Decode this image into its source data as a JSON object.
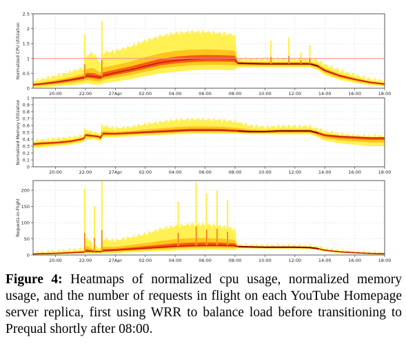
{
  "caption": {
    "label": "Figure 4:",
    "text": "Heatmaps of normalized cpu usage, normalized memory usage, and the number of requests in flight on each YouTube Homepage server replica, first using WRR to balance load before transitioning to Prequal shortly after 08:00."
  },
  "colors": {
    "band_outer": "#fff04a",
    "band_mid": "#ffc21a",
    "band_inner": "#f5500f",
    "core": "#c81a0a",
    "core_dark": "#8a0d08",
    "reference_line": "#ff8a8a",
    "grid": "#c8c8c8"
  },
  "chart_data": [
    {
      "type": "heatmap",
      "ylabel": "Normalized CPU Utilization",
      "xlabel": "",
      "x_ticks": [
        "20:00",
        "22:00",
        "27Apr",
        "02:00",
        "04:00",
        "06:00",
        "08:00",
        "10:00",
        "12:00",
        "14:00",
        "16:00",
        "18:00"
      ],
      "y_ticks": [
        "0",
        "0.5",
        "1",
        "1.5",
        "2",
        "2.5"
      ],
      "ylim": [
        0,
        2.5
      ],
      "xlim_hours": [
        18.5,
        42.0
      ],
      "reference_line_y": 1,
      "grid": true,
      "series": [
        {
          "name": "",
          "x": [
            18.5,
            19,
            20,
            21,
            21.9,
            22.05,
            22.5,
            23.0,
            23.15,
            24,
            25,
            26,
            27,
            28,
            29,
            30,
            31,
            32,
            32.15,
            33,
            34,
            35,
            36,
            37,
            37.5,
            38,
            39,
            40,
            41,
            42
          ],
          "median": [
            0.12,
            0.14,
            0.2,
            0.28,
            0.36,
            0.42,
            0.4,
            0.36,
            0.42,
            0.52,
            0.62,
            0.74,
            0.86,
            0.93,
            0.97,
            0.99,
            0.99,
            0.98,
            0.84,
            0.83,
            0.82,
            0.82,
            0.82,
            0.82,
            0.75,
            0.6,
            0.42,
            0.3,
            0.2,
            0.14
          ],
          "low": [
            0.02,
            0.03,
            0.06,
            0.1,
            0.14,
            0.16,
            0.12,
            0.12,
            0.16,
            0.22,
            0.3,
            0.4,
            0.5,
            0.55,
            0.6,
            0.62,
            0.62,
            0.6,
            0.7,
            0.7,
            0.7,
            0.7,
            0.7,
            0.7,
            0.62,
            0.45,
            0.28,
            0.18,
            0.1,
            0.06
          ],
          "high": [
            0.25,
            0.3,
            0.42,
            0.55,
            0.7,
            1.1,
            1.2,
            0.85,
            1.2,
            1.25,
            1.4,
            1.6,
            1.75,
            1.85,
            1.9,
            1.9,
            1.85,
            1.8,
            1.0,
            0.98,
            0.98,
            0.98,
            0.98,
            1.0,
            0.95,
            0.8,
            0.6,
            0.45,
            0.32,
            0.25
          ],
          "spikes": [
            {
              "x": 21.95,
              "y": 1.8
            },
            {
              "x": 23.1,
              "y": 2.25
            },
            {
              "x": 34.4,
              "y": 1.6
            },
            {
              "x": 35.6,
              "y": 1.7
            },
            {
              "x": 36.4,
              "y": 1.2
            },
            {
              "x": 37.0,
              "y": 1.45
            }
          ]
        }
      ]
    },
    {
      "type": "heatmap",
      "ylabel": "Normalized Memory Utilization",
      "xlabel": "",
      "x_ticks": [
        "20:00",
        "22:00",
        "27Apr",
        "02:00",
        "04:00",
        "06:00",
        "08:00",
        "10:00",
        "12:00",
        "14:00",
        "16:00",
        "18:00"
      ],
      "y_ticks": [
        "0",
        "0.1",
        "0.2",
        "0.3",
        "0.4",
        "0.5",
        "0.6",
        "0.7",
        "0.8",
        "0.9",
        "1"
      ],
      "ylim": [
        0,
        1
      ],
      "xlim_hours": [
        18.5,
        42.0
      ],
      "reference_line_y": 1,
      "grid": true,
      "series": [
        {
          "name": "",
          "x": [
            18.5,
            19,
            20,
            21,
            21.9,
            22.0,
            22.5,
            22.9,
            23.0,
            23.15,
            24,
            25,
            26,
            27,
            28,
            29,
            30,
            31,
            32,
            33,
            34,
            35,
            36,
            37,
            37.4,
            38,
            39,
            40,
            41,
            42
          ],
          "median": [
            0.33,
            0.34,
            0.35,
            0.37,
            0.41,
            0.46,
            0.45,
            0.44,
            0.42,
            0.48,
            0.48,
            0.49,
            0.5,
            0.51,
            0.52,
            0.53,
            0.53,
            0.53,
            0.52,
            0.51,
            0.51,
            0.52,
            0.52,
            0.52,
            0.5,
            0.46,
            0.44,
            0.43,
            0.42,
            0.42
          ],
          "low": [
            0.27,
            0.28,
            0.3,
            0.32,
            0.36,
            0.4,
            0.4,
            0.38,
            0.36,
            0.43,
            0.43,
            0.44,
            0.45,
            0.46,
            0.47,
            0.48,
            0.48,
            0.48,
            0.48,
            0.47,
            0.47,
            0.47,
            0.47,
            0.47,
            0.44,
            0.38,
            0.34,
            0.32,
            0.3,
            0.3
          ],
          "high": [
            0.38,
            0.39,
            0.41,
            0.43,
            0.46,
            0.55,
            0.5,
            0.49,
            0.48,
            0.6,
            0.56,
            0.58,
            0.62,
            0.65,
            0.68,
            0.69,
            0.69,
            0.68,
            0.66,
            0.6,
            0.58,
            0.59,
            0.59,
            0.59,
            0.56,
            0.52,
            0.48,
            0.46,
            0.45,
            0.45
          ],
          "spikes": [
            {
              "x": 21.95,
              "y": 0.56
            },
            {
              "x": 23.1,
              "y": 0.62
            }
          ]
        }
      ]
    },
    {
      "type": "heatmap",
      "ylabel": "Requests-in-Flight",
      "xlabel": "",
      "x_ticks": [
        "20:00",
        "22:00",
        "27Apr",
        "02:00",
        "04:00",
        "06:00",
        "08:00",
        "10:00",
        "12:00",
        "14:00",
        "16:00",
        "18:00"
      ],
      "y_ticks": [
        "0",
        "50",
        "100",
        "150",
        "200"
      ],
      "ylim": [
        0,
        230
      ],
      "xlim_hours": [
        18.5,
        42.0
      ],
      "grid": true,
      "series": [
        {
          "name": "",
          "x": [
            18.5,
            19,
            20,
            21,
            21.9,
            22.05,
            22.5,
            23.0,
            23.15,
            24,
            25,
            26,
            27,
            28,
            29,
            30,
            31,
            32,
            32.15,
            33,
            34,
            35,
            36,
            37,
            37.5,
            38,
            39,
            40,
            41,
            42
          ],
          "median": [
            3,
            4,
            5,
            7,
            9,
            12,
            11,
            10,
            13,
            15,
            18,
            21,
            24,
            27,
            29,
            30,
            30,
            29,
            26,
            25,
            24,
            24,
            24,
            23,
            20,
            15,
            10,
            7,
            5,
            4
          ],
          "low": [
            1,
            1,
            2,
            3,
            4,
            5,
            4,
            4,
            5,
            6,
            8,
            10,
            12,
            14,
            15,
            16,
            16,
            15,
            20,
            20,
            19,
            19,
            19,
            18,
            15,
            10,
            6,
            4,
            2,
            1
          ],
          "high": [
            8,
            9,
            12,
            16,
            20,
            60,
            30,
            22,
            50,
            45,
            55,
            65,
            80,
            90,
            95,
            95,
            90,
            80,
            32,
            31,
            30,
            30,
            30,
            29,
            26,
            20,
            14,
            10,
            8,
            7
          ],
          "spikes": [
            {
              "x": 21.95,
              "y": 205
            },
            {
              "x": 22.6,
              "y": 150
            },
            {
              "x": 23.1,
              "y": 228
            },
            {
              "x": 28.2,
              "y": 165
            },
            {
              "x": 29.4,
              "y": 225
            },
            {
              "x": 30.1,
              "y": 190
            },
            {
              "x": 30.8,
              "y": 200
            },
            {
              "x": 31.5,
              "y": 170
            }
          ]
        }
      ]
    }
  ]
}
